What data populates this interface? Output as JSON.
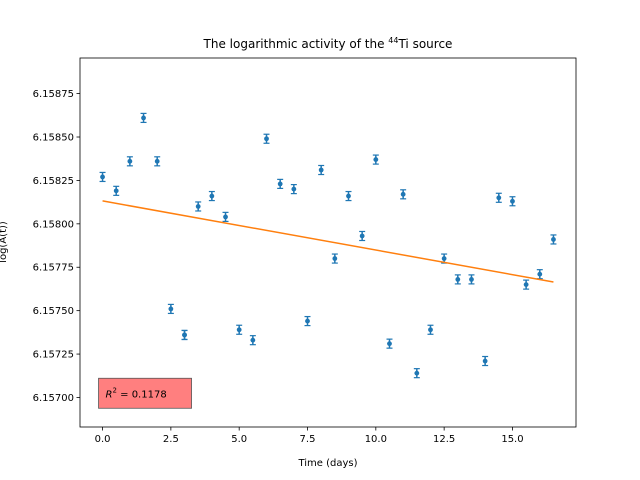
{
  "chart_data": {
    "type": "scatter",
    "title": "The logarithmic activity of the ",
    "title_superscript": "44",
    "title_suffix": "Ti source",
    "xlabel": "Time (days)",
    "ylabel": "log(A(t))",
    "xlim": [
      -0.825,
      17.325
    ],
    "ylim": [
      6.15683,
      6.158955
    ],
    "xticks": [
      0.0,
      2.5,
      5.0,
      7.5,
      10.0,
      12.5,
      15.0
    ],
    "xtick_labels": [
      "0.0",
      "2.5",
      "5.0",
      "7.5",
      "10.0",
      "12.5",
      "15.0"
    ],
    "yticks": [
      6.157,
      6.15725,
      6.1575,
      6.15775,
      6.158,
      6.15825,
      6.1585,
      6.15875
    ],
    "ytick_labels": [
      "6.15700",
      "6.15725",
      "6.15750",
      "6.15775",
      "6.15800",
      "6.15825",
      "6.15850",
      "6.15875"
    ],
    "grid": false,
    "series": [
      {
        "kind": "errorbar",
        "color": "#1f77b4",
        "error": 2.6e-05,
        "x": [
          0,
          0.5,
          1,
          1.5,
          2,
          3,
          2.5,
          3,
          3.5,
          4,
          4.5,
          5,
          5.5,
          6,
          6.5,
          7,
          7.5,
          8,
          8.5,
          9,
          9.5,
          10,
          10.5,
          11,
          11.5,
          12,
          12.5,
          13,
          13.5,
          14,
          14.5,
          15,
          15.5,
          16,
          16.5
        ],
        "y": [
          6.15827,
          6.15819,
          6.15836,
          6.15861,
          6.15836,
          6.15736,
          6.15751,
          6.15736,
          6.1581,
          6.15816,
          6.15804,
          6.15739,
          6.15733,
          6.15849,
          6.15823,
          6.1582,
          6.15744,
          6.15831,
          6.1578,
          6.15816,
          6.15793,
          6.15837,
          6.15731,
          6.15817,
          6.15714,
          6.15739,
          6.1578,
          6.15768,
          6.15768,
          6.15721,
          6.15815,
          6.15813,
          6.15765,
          6.15771,
          6.15791
        ]
      },
      {
        "kind": "line",
        "color": "#ff7f0e",
        "x": [
          0,
          16.5
        ],
        "y": [
          6.158132,
          6.157665
        ]
      }
    ],
    "annotation": {
      "label": "R",
      "superscript": "2",
      "value": " = 0.1178",
      "x": 0,
      "y": 6.15703,
      "facecolor": "#ff7f7f"
    }
  }
}
